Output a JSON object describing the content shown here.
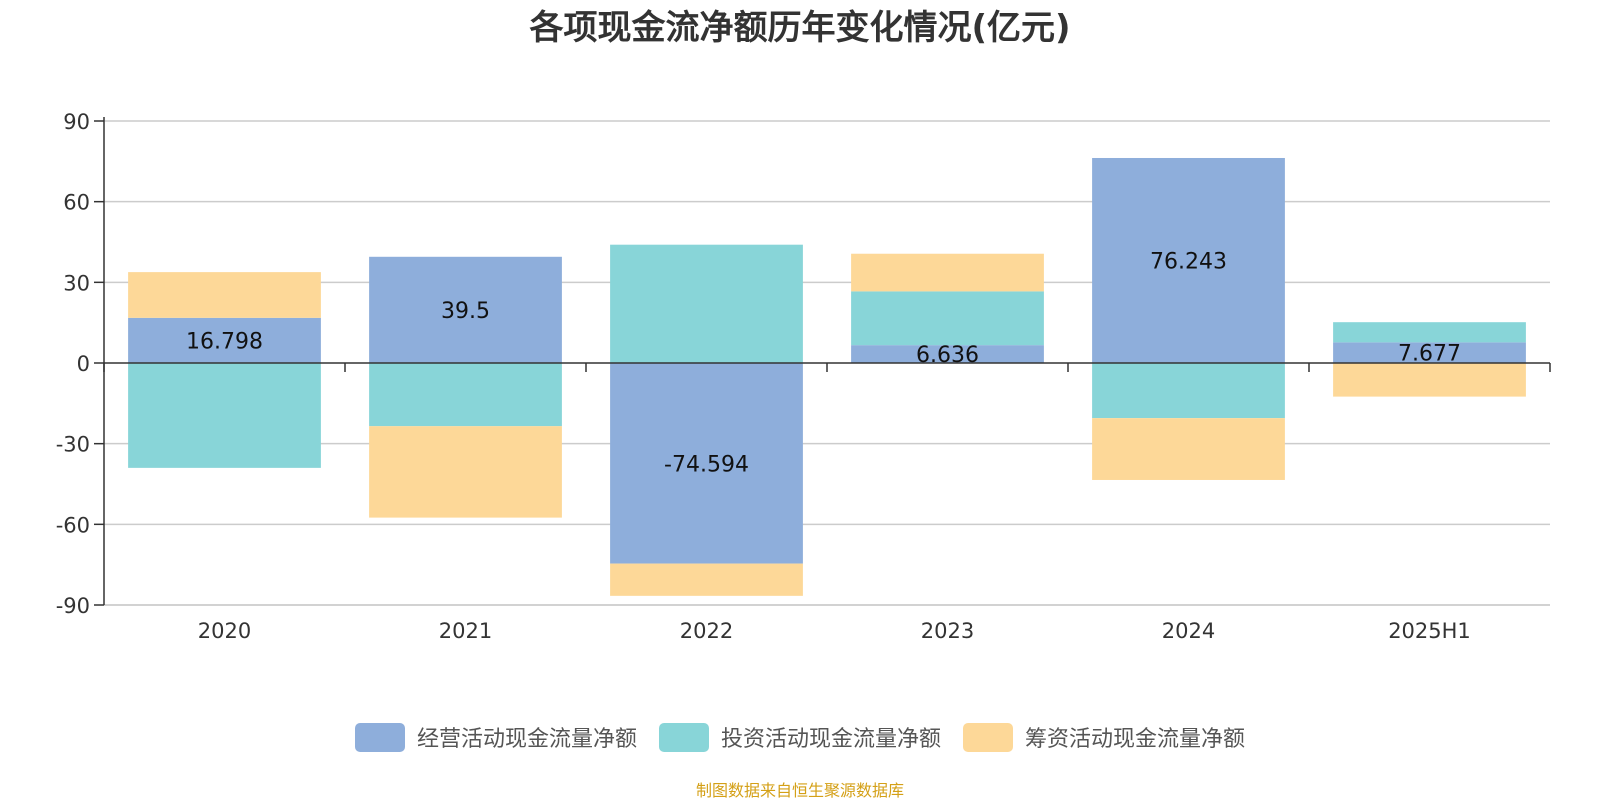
{
  "chart_data": {
    "type": "bar",
    "stacked": true,
    "title": "各项现金流净额历年变化情况(亿元)",
    "categories": [
      "2020",
      "2021",
      "2022",
      "2023",
      "2024",
      "2025H1"
    ],
    "ylim": [
      -90,
      90
    ],
    "yticks": [
      "90",
      "60",
      "30",
      "0",
      "-30",
      "-60",
      "-90"
    ],
    "ytick_values": [
      90,
      60,
      30,
      0,
      -30,
      -60,
      -90
    ],
    "grid": true,
    "legend_position": "bottom",
    "series": [
      {
        "name": "经营活动现金流量净额",
        "color": "#8eaedb",
        "values": [
          16.798,
          39.5,
          -74.594,
          6.636,
          76.243,
          7.677
        ],
        "labels": [
          "16.798",
          "39.5",
          "-74.594",
          "6.636",
          "76.243",
          "7.677"
        ]
      },
      {
        "name": "投资活动现金流量净额",
        "color": "#88d5d8",
        "values": [
          -39,
          -23.5,
          44,
          20,
          -20.5,
          7.5
        ]
      },
      {
        "name": "筹资活动现金流量净额",
        "color": "#fdd898",
        "values": [
          17,
          -34,
          -12,
          14,
          -23,
          -12.5
        ]
      }
    ]
  },
  "source_note": "制图数据来自恒生聚源数据库"
}
